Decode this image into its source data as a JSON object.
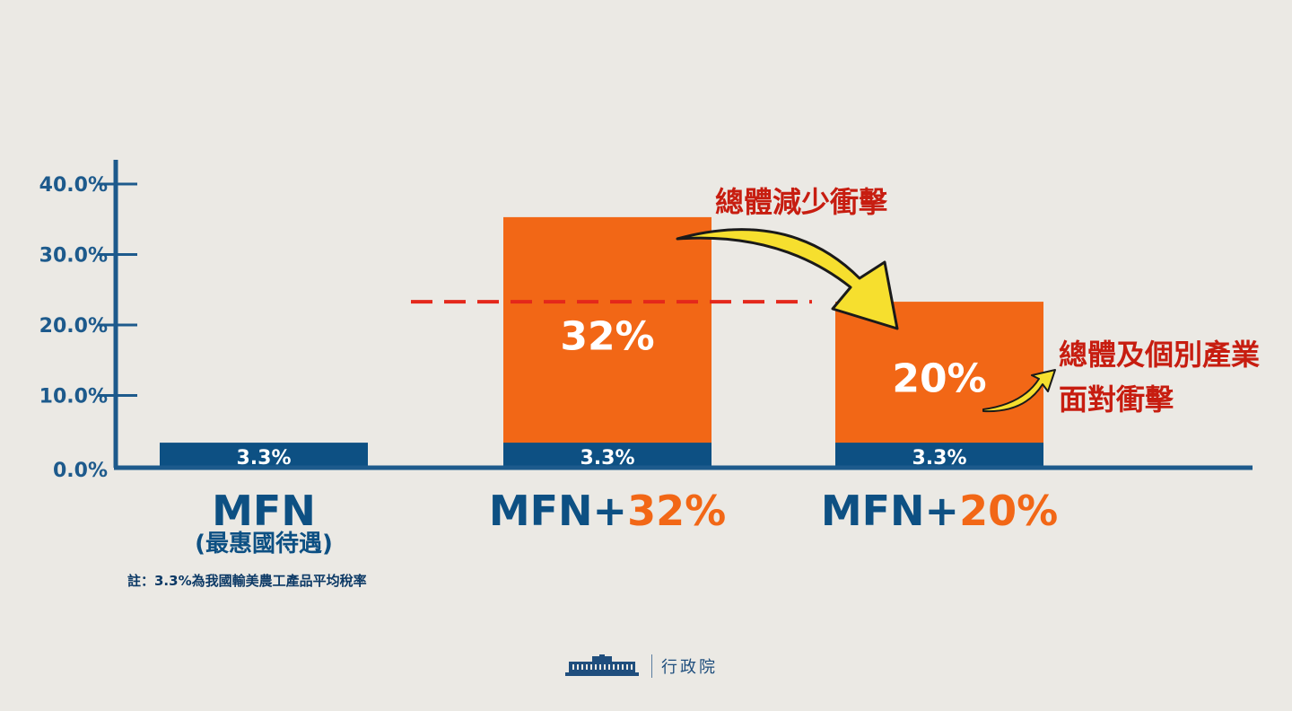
{
  "colors": {
    "background": "#ebe9e4",
    "navy": "#0d5083",
    "axis": "#1d5a8c",
    "orange": "#f26716",
    "red_text": "#c71d10",
    "dash": "#e4281b",
    "arrow_fill": "#f6df2e",
    "white": "#ffffff"
  },
  "chart_data": {
    "type": "bar",
    "stacked": true,
    "ylim": [
      0,
      40
    ],
    "yticks": [
      "0.0%",
      "10.0%",
      "20.0%",
      "30.0%",
      "40.0%"
    ],
    "categories": [
      {
        "main": "MFN",
        "sub": "(最惠國待遇)",
        "extra": ""
      },
      {
        "main": "MFN+",
        "sub": "",
        "extra": "32%"
      },
      {
        "main": "MFN+",
        "sub": "",
        "extra": "20%"
      }
    ],
    "series": [
      {
        "values": [
          3.3,
          3.3,
          3.3
        ],
        "labels": [
          "3.3%",
          "3.3%",
          "3.3%"
        ]
      },
      {
        "values": [
          0,
          32,
          20
        ],
        "labels": [
          "",
          "32%",
          "20%"
        ]
      }
    ],
    "reference_line": {
      "value": 23.3,
      "style": "dashed"
    },
    "annotations": [
      {
        "text": "總體減少衝擊"
      },
      {
        "lines": [
          "總體及個別產業",
          "面對衝擊"
        ]
      }
    ]
  },
  "note": "註：3.3%為我國輸美農工產品平均稅率",
  "footer": {
    "org": "行政院",
    "logo": "executive-yuan-building-icon"
  }
}
